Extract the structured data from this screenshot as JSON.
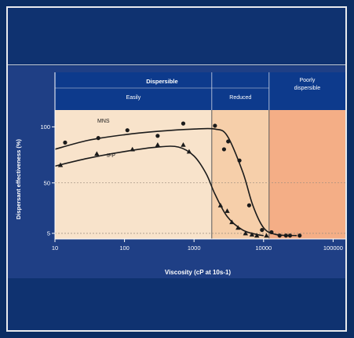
{
  "colors": {
    "frame": "#0b2d63",
    "panel_blue": "#1f3f85",
    "header_blue": "#0d3a8c",
    "zone_easy": "#f8e3cb",
    "zone_reduced": "#f6cfaa",
    "zone_poor": "#f4ae86",
    "curve": "#1b1b1b",
    "reference_line": "#9a8c7e"
  },
  "chart_data": {
    "type": "scatter",
    "xlabel": "Viscosity (cP at 10s-1)",
    "ylabel": "Dispersant effectiveness (%)",
    "x_scale": "log",
    "xlim": [
      10,
      150000
    ],
    "ylim": [
      0,
      115
    ],
    "x_ticks": [
      10,
      100,
      1000,
      10000,
      100000
    ],
    "x_tick_labels": [
      "10",
      "100",
      "1000",
      "10000",
      "100000"
    ],
    "y_ticks": [
      5,
      50,
      100
    ],
    "y_tick_labels": [
      "5",
      "50",
      "100"
    ],
    "reference_lines_y": [
      50,
      5
    ],
    "header": {
      "top": "Dispersible",
      "zones": [
        {
          "label": "Easily",
          "from": 10,
          "to": 1800
        },
        {
          "label": "Reduced",
          "from": 1800,
          "to": 12000
        },
        {
          "label": "Poorly dispersible",
          "from": 12000,
          "to": 150000
        }
      ]
    },
    "series": [
      {
        "name": "MNS",
        "marker": "circle",
        "points": [
          [
            14,
            86
          ],
          [
            42,
            90
          ],
          [
            110,
            97
          ],
          [
            300,
            92
          ],
          [
            700,
            103
          ],
          [
            2000,
            101
          ],
          [
            2700,
            80
          ],
          [
            3100,
            87
          ],
          [
            4500,
            70
          ],
          [
            6200,
            30
          ],
          [
            9500,
            8
          ],
          [
            13000,
            6
          ],
          [
            17000,
            3
          ],
          [
            21000,
            3
          ],
          [
            24000,
            3
          ],
          [
            33000,
            3
          ]
        ],
        "curve": [
          [
            10,
            80
          ],
          [
            30,
            88
          ],
          [
            100,
            93
          ],
          [
            300,
            96
          ],
          [
            1000,
            98
          ],
          [
            2000,
            98
          ],
          [
            3000,
            92
          ],
          [
            5000,
            60
          ],
          [
            7000,
            30
          ],
          [
            10000,
            10
          ],
          [
            15000,
            4
          ],
          [
            30000,
            3
          ]
        ]
      },
      {
        "name": "IFP",
        "marker": "triangle",
        "points": [
          [
            12,
            66
          ],
          [
            40,
            76
          ],
          [
            130,
            80
          ],
          [
            300,
            84
          ],
          [
            700,
            84
          ],
          [
            850,
            78
          ],
          [
            2400,
            30
          ],
          [
            3000,
            25
          ],
          [
            3500,
            15
          ],
          [
            4300,
            10
          ],
          [
            5500,
            5
          ],
          [
            6800,
            4
          ],
          [
            8000,
            3
          ],
          [
            11000,
            3
          ]
        ],
        "curve": [
          [
            10,
            65
          ],
          [
            30,
            72
          ],
          [
            100,
            78
          ],
          [
            300,
            82
          ],
          [
            600,
            82
          ],
          [
            1000,
            74
          ],
          [
            1500,
            58
          ],
          [
            2000,
            40
          ],
          [
            3000,
            20
          ],
          [
            5000,
            8
          ],
          [
            8000,
            4
          ],
          [
            10000,
            3
          ]
        ]
      }
    ]
  }
}
